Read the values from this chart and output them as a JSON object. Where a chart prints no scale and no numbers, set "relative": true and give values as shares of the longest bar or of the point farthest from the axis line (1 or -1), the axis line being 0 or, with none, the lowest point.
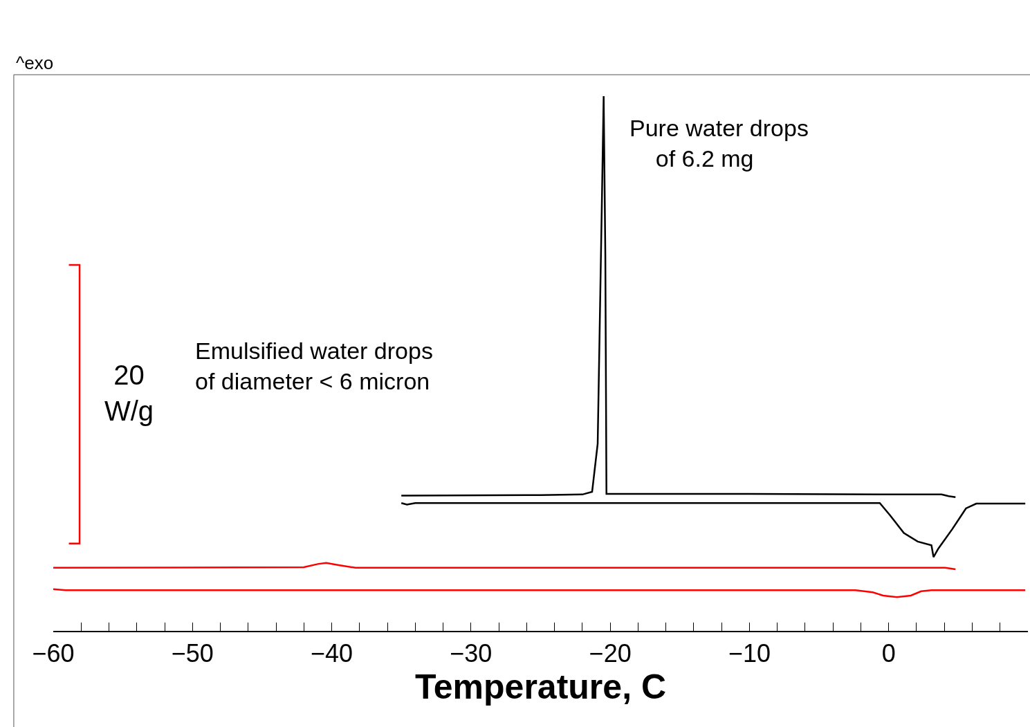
{
  "chart_data": {
    "type": "line",
    "relative": true,
    "xlabel": "Temperature, C",
    "xlim": [
      -60,
      10
    ],
    "xticks": [
      -60,
      {
        "value": -58,
        "label": null
      },
      {
        "value": -56,
        "label": null
      },
      {
        "value": -54,
        "label": null
      },
      {
        "value": -52,
        "label": null
      },
      -50,
      {
        "value": -48,
        "label": null
      },
      {
        "value": -46,
        "label": null
      },
      {
        "value": -44,
        "label": null
      },
      {
        "value": -42,
        "label": null
      },
      -40,
      {
        "value": -38,
        "label": null
      },
      {
        "value": -36,
        "label": null
      },
      {
        "value": -34,
        "label": null
      },
      {
        "value": -32,
        "label": null
      },
      -30,
      {
        "value": -28,
        "label": null
      },
      {
        "value": -26,
        "label": null
      },
      {
        "value": -24,
        "label": null
      },
      {
        "value": -22,
        "label": null
      },
      -20,
      {
        "value": -18,
        "label": null
      },
      {
        "value": -16,
        "label": null
      },
      {
        "value": -14,
        "label": null
      },
      {
        "value": -12,
        "label": null
      },
      -10,
      {
        "value": -8,
        "label": null
      },
      {
        "value": -6,
        "label": null
      },
      {
        "value": -4,
        "label": null
      },
      {
        "value": -2,
        "label": null
      },
      0,
      {
        "value": 2,
        "label": null
      },
      {
        "value": 4,
        "label": null
      },
      {
        "value": 6,
        "label": null
      },
      {
        "value": 8,
        "label": null
      },
      {
        "value": 10,
        "label": null
      }
    ],
    "series": [
      {
        "color": "#000000",
        "x": [
          -35,
          -25,
          -22,
          -21.3,
          -20.9,
          -20.6,
          -20.47,
          -20.35,
          -20.27,
          -10,
          0,
          3.8,
          4.3,
          4.8
        ],
        "values": [
          0.253,
          0.254,
          0.255,
          0.26,
          0.35,
          0.8,
          1.0,
          0.7,
          0.256,
          0.256,
          0.255,
          0.255,
          0.252,
          0.25
        ]
      },
      {
        "color": "#000000",
        "x": [
          -35,
          -34.6,
          -34,
          -0.64,
          0.1,
          1.09,
          2.08,
          3.07,
          3.22,
          3.57,
          4.56,
          5.55,
          6.29,
          9.81
        ],
        "values": [
          0.239,
          0.236,
          0.239,
          0.239,
          0.216,
          0.183,
          0.167,
          0.16,
          0.138,
          0.154,
          0.19,
          0.229,
          0.238,
          0.238
        ]
      },
      {
        "color": "#ff0000",
        "x": [
          -60,
          -42,
          -41,
          -40.4,
          -39.5,
          -38.3,
          4.06,
          4.8
        ],
        "values": [
          0.118,
          0.119,
          0.125,
          0.127,
          0.123,
          0.118,
          0.118,
          0.115
        ]
      },
      {
        "color": "#ff0000",
        "x": [
          -60,
          -59.1,
          -2.38,
          -1.14,
          -0.4,
          0.59,
          1.59,
          2.33,
          3.07,
          9.81
        ],
        "values": [
          0.078,
          0.076,
          0.076,
          0.072,
          0.066,
          0.063,
          0.066,
          0.074,
          0.076,
          0.076
        ]
      }
    ],
    "annotations": [
      "^exo",
      "Pure water drops\n    of 6.2 mg",
      "Emulsified water drops\nof diameter < 6 micron",
      "20\nW/g"
    ]
  }
}
